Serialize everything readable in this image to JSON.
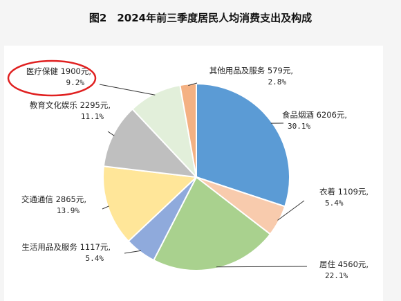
{
  "chart_data": {
    "type": "pie",
    "title": "图2　2024年前三季度居民人均消费支出及构成",
    "unit": "元",
    "slices": [
      {
        "name": "食品烟酒",
        "value": 6206,
        "percent": 30.1,
        "color": "#5b9bd5",
        "value_text": "6206元,",
        "percent_text": "30.1%"
      },
      {
        "name": "衣着",
        "value": 1109,
        "percent": 5.4,
        "color": "#f8cbad",
        "value_text": "1109元,",
        "percent_text": "5.4%"
      },
      {
        "name": "居住",
        "value": 4560,
        "percent": 22.1,
        "color": "#a9d18e",
        "value_text": "4560元,",
        "percent_text": "22.1%"
      },
      {
        "name": "生活用品及服务",
        "value": 1117,
        "percent": 5.4,
        "color": "#8faadc",
        "value_text": "1117元,",
        "percent_text": "5.4%"
      },
      {
        "name": "交通通信",
        "value": 2865,
        "percent": 13.9,
        "color": "#ffe699",
        "value_text": "2865元,",
        "percent_text": "13.9%"
      },
      {
        "name": "教育文化娱乐",
        "value": 2295,
        "percent": 11.1,
        "color": "#bfbfbf",
        "value_text": "2295元,",
        "percent_text": "11.1%"
      },
      {
        "name": "医疗保健",
        "value": 1900,
        "percent": 9.2,
        "color": "#e2efda",
        "value_text": "1900元,",
        "percent_text": "9.2%"
      },
      {
        "name": "其他用品及服务",
        "value": 579,
        "percent": 2.8,
        "color": "#f4b183",
        "value_text": "579元,",
        "percent_text": "2.8%"
      }
    ],
    "highlighted": "医疗保健",
    "highlight_color": "#e02020"
  }
}
